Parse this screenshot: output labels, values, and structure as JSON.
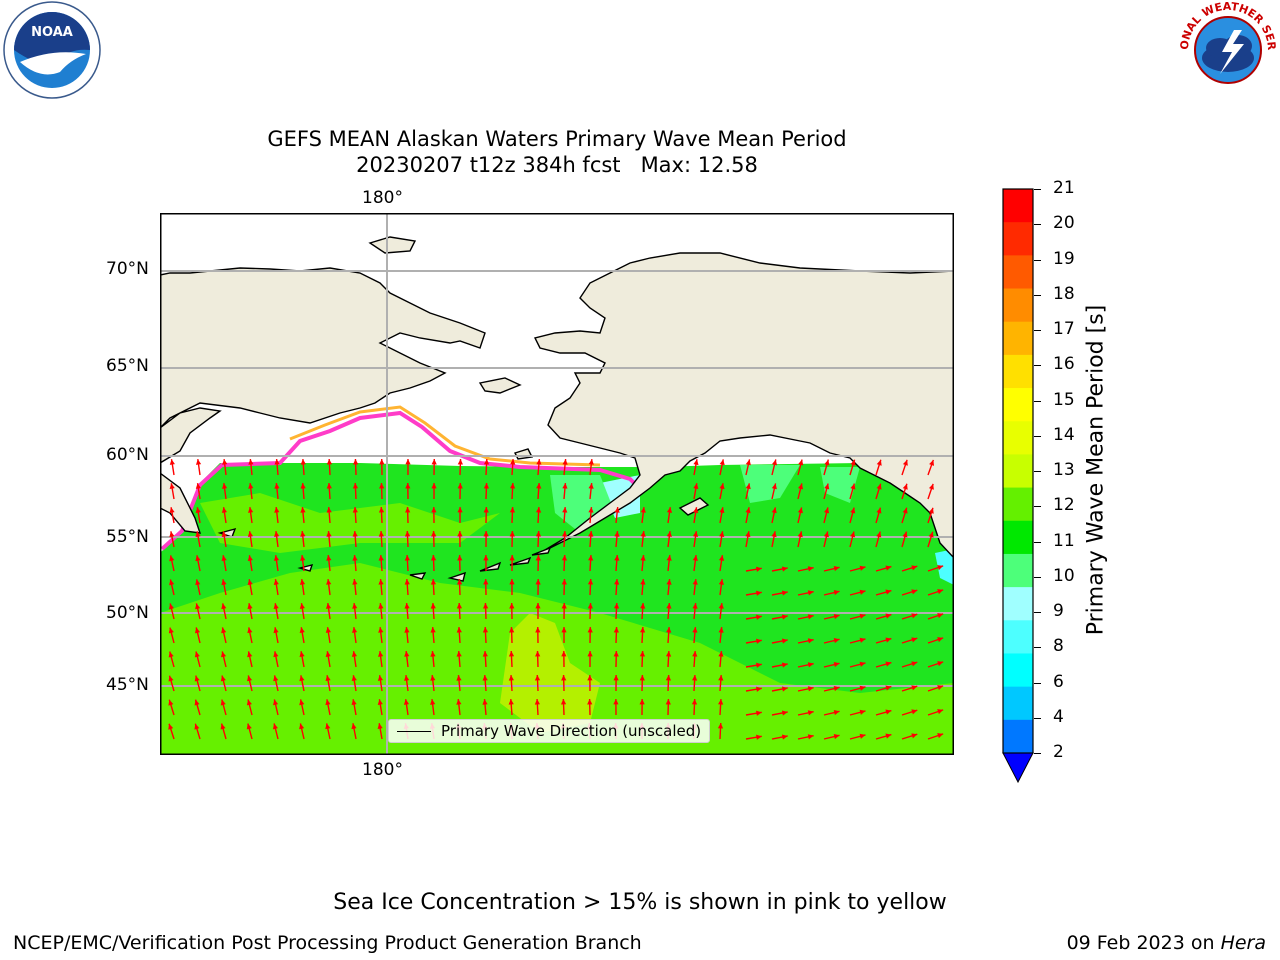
{
  "header": {
    "title_line1": "GEFS MEAN Alaskan Waters Primary Wave Mean Period",
    "title_line2": "20230207 t12z 384h fcst   Max: 12.58"
  },
  "logos": {
    "left": {
      "text": "NOAA"
    },
    "right": {
      "text": "NATIONAL WEATHER SERVICE"
    }
  },
  "map": {
    "top_lon_label": "180°",
    "bottom_lon_label": "180°",
    "lat_labels": [
      "70°N",
      "65°N",
      "60°N",
      "55°N",
      "50°N",
      "45°N"
    ],
    "legend_label": "Primary Wave Direction (unscaled)",
    "colors": {
      "land": "#efecdc",
      "ocean_green": "#1fe51f",
      "ocean_lightgreen": "#66f000",
      "ocean_yellowgreen": "#b4f000",
      "arrow": "#ff0000",
      "grid": "#b0b0b0"
    }
  },
  "colorbar": {
    "label": "Primary Wave Mean Period [s]",
    "ticks": [
      "21",
      "20",
      "19",
      "18",
      "17",
      "16",
      "15",
      "14",
      "13",
      "12",
      "11",
      "10",
      "9",
      "8",
      "6",
      "4",
      "2"
    ],
    "colors": [
      "#ff0000",
      "#ff2a00",
      "#ff5a00",
      "#ff8c00",
      "#ffb400",
      "#ffe000",
      "#ffff00",
      "#e8ff00",
      "#c8ff00",
      "#64f000",
      "#00e800",
      "#4dff7a",
      "#a0ffff",
      "#4dffff",
      "#00ffff",
      "#00c8ff",
      "#0078ff"
    ],
    "extend_color": "#0000ff"
  },
  "notes": {
    "sea_ice": "Sea Ice Concentration > 15% is shown in pink to yellow"
  },
  "footer": {
    "left": "NCEP/EMC/Verification Post Processing Product Generation Branch",
    "right_prefix": "09 Feb 2023 on ",
    "right_machine": "Hera"
  }
}
